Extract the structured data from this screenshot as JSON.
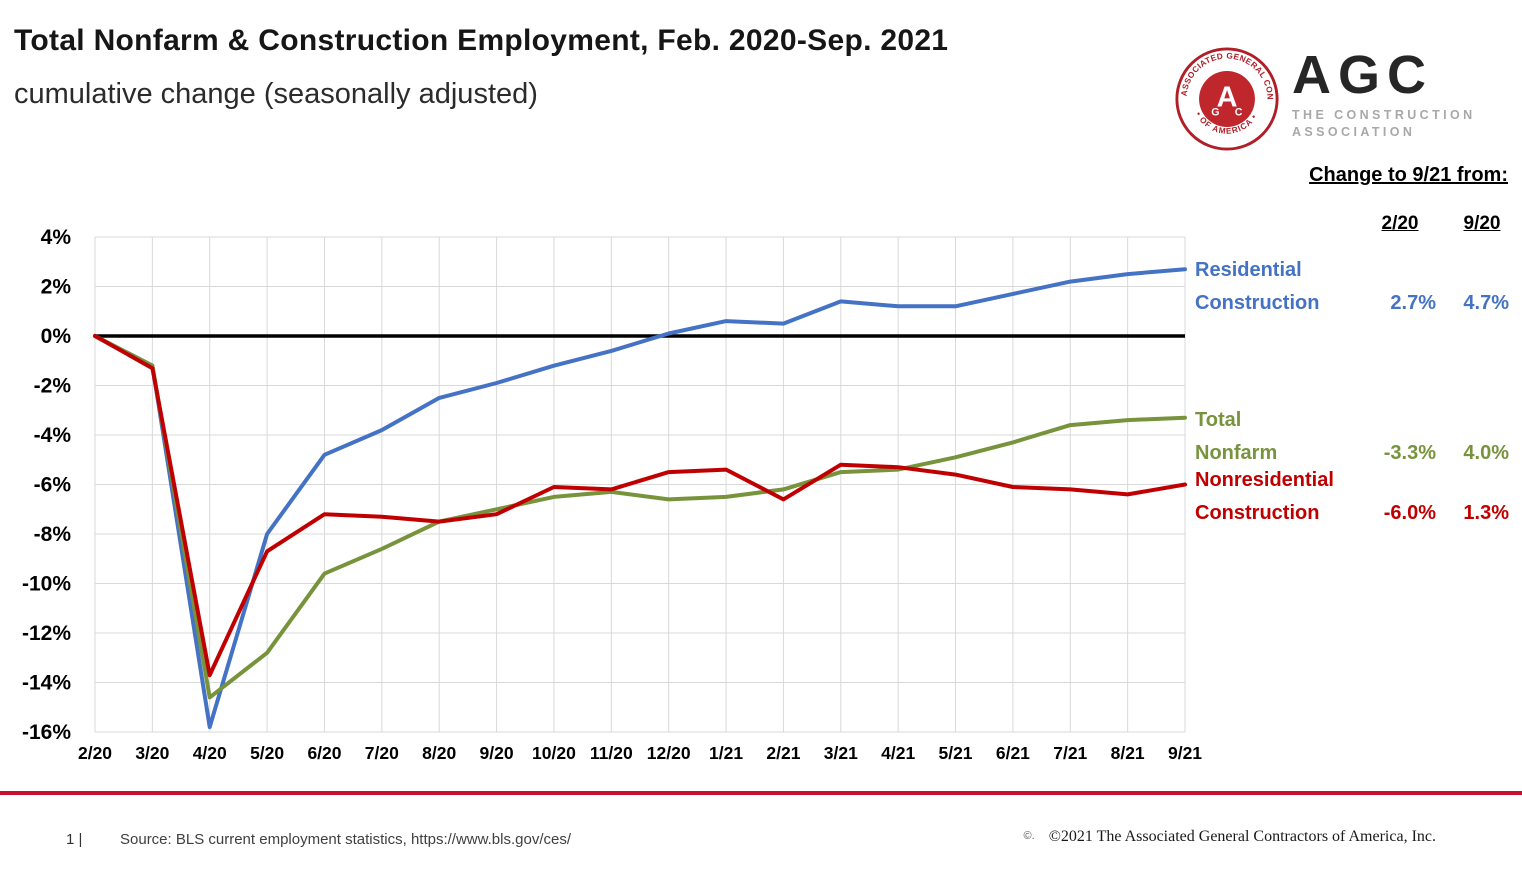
{
  "header": {
    "title": "Total Nonfarm & Construction Employment, Feb. 2020-Sep. 2021",
    "subtitle": "cumulative change (seasonally adjusted)"
  },
  "logo": {
    "acronym": "AGC",
    "tagline_line1": "THE CONSTRUCTION",
    "tagline_line2": "ASSOCIATION",
    "seal_arc_top": "ASSOCIATED GENERAL CONTRACTORS",
    "seal_arc_bottom": "• OF AMERICA •",
    "seal_letter_a": "A",
    "seal_letter_g": "G",
    "seal_letter_c": "C",
    "seal_color": "#b01e28"
  },
  "summary_table": {
    "heading": "Change to 9/21 from:",
    "columns": [
      "2/20",
      "9/20"
    ],
    "rows": [
      {
        "label_line1": "Residential",
        "label_line2": "Construction",
        "color": "#4472C4",
        "values": [
          "2.7%",
          "4.7%"
        ]
      },
      {
        "label_line1": "Total",
        "label_line2": "Nonfarm",
        "color": "#77933C",
        "values": [
          "-3.3%",
          "4.0%"
        ]
      },
      {
        "label_line1": "Nonresidential",
        "label_line2": "Construction",
        "color": "#C00000",
        "values": [
          "-6.0%",
          "1.3%"
        ]
      }
    ]
  },
  "chart_data": {
    "type": "line",
    "title": "Total Nonfarm & Construction Employment, Feb. 2020-Sep. 2021",
    "subtitle": "cumulative change (seasonally adjusted)",
    "xlabel": "",
    "ylabel": "",
    "grid": true,
    "zero_line": true,
    "ylim": [
      -16,
      4
    ],
    "ytick_step": 2,
    "ytick_labels": [
      "4%",
      "2%",
      "0%",
      "-2%",
      "-4%",
      "-6%",
      "-8%",
      "-10%",
      "-12%",
      "-14%",
      "-16%"
    ],
    "x": [
      "2/20",
      "3/20",
      "4/20",
      "5/20",
      "6/20",
      "7/20",
      "8/20",
      "9/20",
      "10/20",
      "11/20",
      "12/20",
      "1/21",
      "2/21",
      "3/21",
      "4/21",
      "5/21",
      "6/21",
      "7/21",
      "8/21",
      "9/21"
    ],
    "series": [
      {
        "name": "Residential Construction",
        "color": "#4472C4",
        "values": [
          0,
          -1.2,
          -15.8,
          -8.0,
          -4.8,
          -3.8,
          -2.5,
          -1.9,
          -1.2,
          -0.6,
          0.1,
          0.6,
          0.5,
          1.4,
          1.2,
          1.2,
          1.7,
          2.2,
          2.5,
          2.7
        ]
      },
      {
        "name": "Total Nonfarm",
        "color": "#77933C",
        "values": [
          0,
          -1.2,
          -14.6,
          -12.8,
          -9.6,
          -8.6,
          -7.5,
          -7.0,
          -6.5,
          -6.3,
          -6.6,
          -6.5,
          -6.2,
          -5.5,
          -5.4,
          -4.9,
          -4.3,
          -3.6,
          -3.4,
          -3.3
        ]
      },
      {
        "name": "Nonresidential Construction",
        "color": "#C00000",
        "values": [
          0,
          -1.3,
          -13.7,
          -8.7,
          -7.2,
          -7.3,
          -7.5,
          -7.2,
          -6.1,
          -6.2,
          -5.5,
          -5.4,
          -6.6,
          -5.2,
          -5.3,
          -5.6,
          -6.1,
          -6.2,
          -6.4,
          -6.0
        ]
      }
    ],
    "gridline_color": "#d9d9d9"
  },
  "footer": {
    "divider_color": "#C8102E",
    "page_number": "1 |",
    "source": "Source: BLS current employment statistics, https://www.bls.gov/ces/",
    "copyright_mark": "©.",
    "copyright": "©2021 The Associated General Contractors of America, Inc."
  }
}
